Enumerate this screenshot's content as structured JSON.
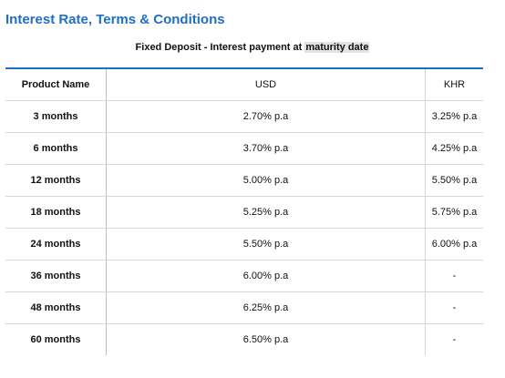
{
  "title": "Interest Rate, Terms & Conditions",
  "subtitle": {
    "prefix": "Fixed Deposit - Interest payment at ",
    "highlight": "maturity date"
  },
  "table": {
    "headers": {
      "name": "Product Name",
      "usd": "USD",
      "khr": "KHR"
    },
    "rows": [
      {
        "name": "3 months",
        "usd": "2.70% p.a",
        "khr": "3.25% p.a"
      },
      {
        "name": "6 months",
        "usd": "3.70% p.a",
        "khr": "4.25% p.a"
      },
      {
        "name": "12 months",
        "usd": "5.00% p.a",
        "khr": "5.50% p.a"
      },
      {
        "name": "18 months",
        "usd": "5.25% p.a",
        "khr": "5.75% p.a"
      },
      {
        "name": "24 months",
        "usd": "5.50% p.a",
        "khr": "6.00% p.a"
      },
      {
        "name": "36 months",
        "usd": "6.00% p.a",
        "khr": "-"
      },
      {
        "name": "48 months",
        "usd": "6.25% p.a",
        "khr": "-"
      },
      {
        "name": "60 months",
        "usd": "6.50% p.a",
        "khr": "-"
      }
    ]
  },
  "colors": {
    "accent": "#1f6fc4",
    "highlight": "#e3e3e3"
  }
}
